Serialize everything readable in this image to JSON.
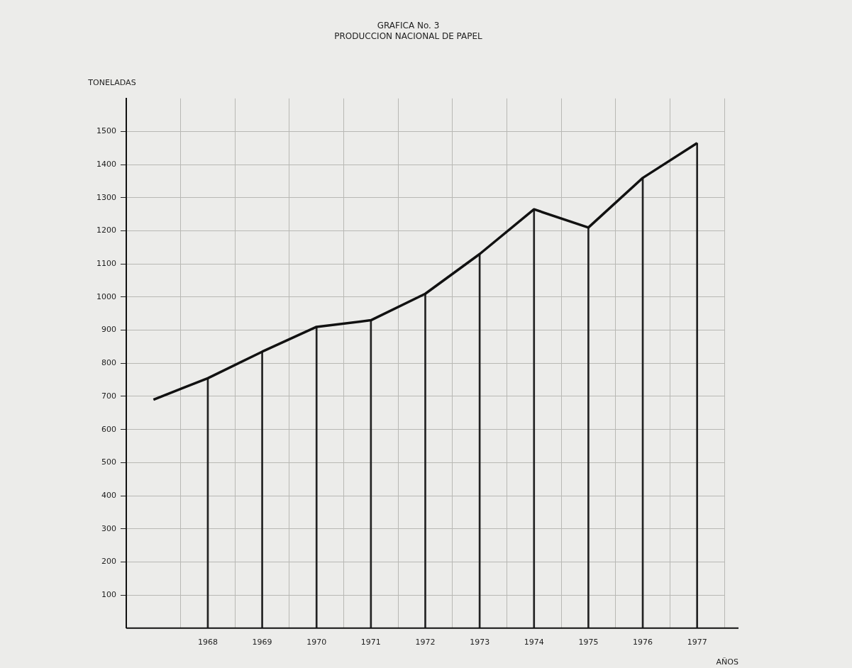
{
  "chart_data": {
    "type": "line",
    "title": "GRAFICA No. 3",
    "subtitle": "PRODUCCION NACIONAL DE PAPEL",
    "xlabel": "AÑOS",
    "ylabel": "TONELADAS",
    "categories": [
      null,
      "1968",
      "1969",
      "1970",
      "1971",
      "1972",
      "1973",
      "1974",
      "1975",
      "1976",
      "1977"
    ],
    "series": [
      {
        "color": "#111111",
        "values": [
          690,
          755,
          835,
          910,
          930,
          1010,
          1130,
          1265,
          1210,
          1360,
          1465
        ]
      },
      {
        "type": "bar",
        "color": "#222222",
        "values": [
          null,
          755,
          835,
          910,
          930,
          1010,
          1130,
          1265,
          1210,
          1360,
          1465
        ]
      }
    ],
    "grid": true,
    "ylim": [
      0,
      1600
    ],
    "yticks": [
      100,
      200,
      300,
      400,
      500,
      600,
      700,
      800,
      900,
      1000,
      1100,
      1200,
      1300,
      1400,
      1500
    ],
    "legend": false
  }
}
